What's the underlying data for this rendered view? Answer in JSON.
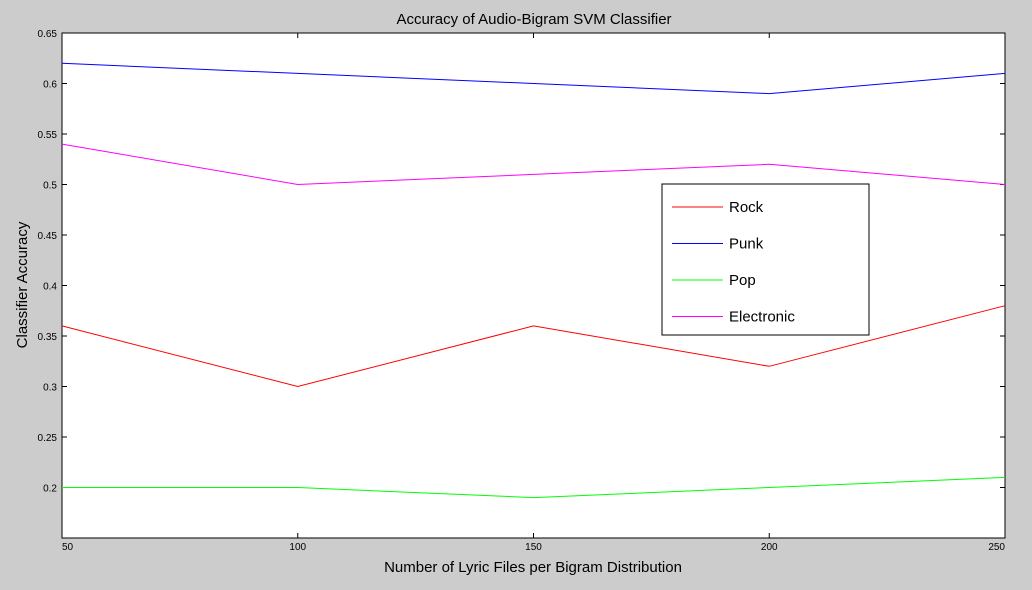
{
  "chart_data": {
    "type": "line",
    "title": "Accuracy of Audio-Bigram SVM Classifier",
    "xlabel": "Number of Lyric Files per Bigram Distribution",
    "ylabel": "Classifier Accuracy",
    "x": [
      50,
      100,
      150,
      200,
      250
    ],
    "xlim": [
      50,
      250
    ],
    "ylim": [
      0.15,
      0.65
    ],
    "xticks": [
      50,
      100,
      150,
      200,
      250
    ],
    "yticks": [
      0.2,
      0.25,
      0.3,
      0.35,
      0.4,
      0.45,
      0.5,
      0.55,
      0.6,
      0.65
    ],
    "series": [
      {
        "name": "Rock",
        "color": "#ff0000",
        "values": [
          0.36,
          0.3,
          0.36,
          0.32,
          0.38
        ]
      },
      {
        "name": "Punk",
        "color": "#0000ff",
        "values": [
          0.62,
          0.61,
          0.6,
          0.59,
          0.61
        ]
      },
      {
        "name": "Pop",
        "color": "#00ff00",
        "values": [
          0.2,
          0.2,
          0.19,
          0.2,
          0.21
        ]
      },
      {
        "name": "Electronic",
        "color": "#ff00ff",
        "values": [
          0.54,
          0.5,
          0.51,
          0.52,
          0.5
        ]
      }
    ],
    "grid": false,
    "legend_position": "right"
  }
}
